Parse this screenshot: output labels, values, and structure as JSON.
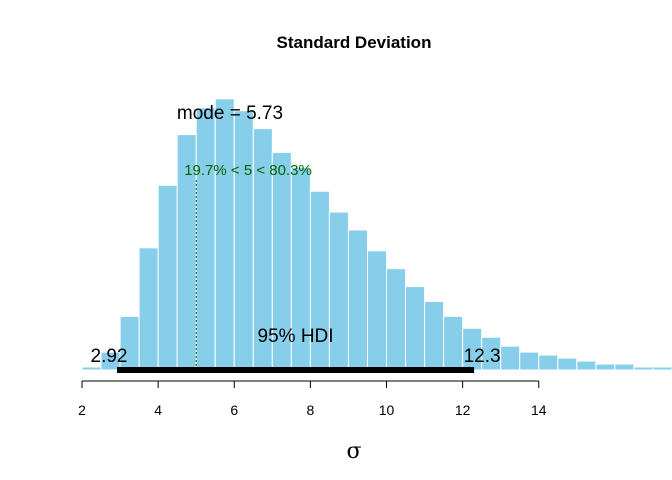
{
  "chart_data": {
    "type": "bar",
    "title": "Standard Deviation",
    "xlabel": "σ",
    "ylabel": "",
    "xlim": [
      2,
      17.5
    ],
    "x_ticks": [
      2,
      4,
      6,
      8,
      10,
      12,
      14
    ],
    "bar_color": "#87CEEB",
    "bar_edge_color": "#ffffff",
    "bin_width": 0.5,
    "bins_x_start": [
      2.0,
      2.5,
      3.0,
      3.5,
      4.0,
      4.5,
      5.0,
      5.5,
      6.0,
      6.5,
      7.0,
      7.5,
      8.0,
      8.5,
      9.0,
      9.5,
      10.0,
      10.5,
      11.0,
      11.5,
      12.0,
      12.5,
      13.0,
      13.5,
      14.0,
      14.5,
      15.0,
      15.5,
      16.0,
      16.5,
      17.0
    ],
    "bin_heights": [
      1,
      6,
      18,
      41,
      62,
      79,
      88,
      91,
      87,
      81,
      73,
      68,
      60,
      53,
      47,
      40,
      34,
      28,
      23,
      18,
      14,
      11,
      8,
      6,
      5,
      4,
      3,
      2,
      2,
      1,
      1
    ],
    "y_max": 100,
    "mode_label": "mode = 5.73",
    "comparison": {
      "label": "19.7% < 5 < 80.3%",
      "value": 5,
      "color": "#006400"
    },
    "hdi": {
      "label": "95% HDI",
      "low": 2.92,
      "high": 12.3,
      "low_label": "2.92",
      "high_label": "12.3",
      "color": "#000000"
    }
  }
}
